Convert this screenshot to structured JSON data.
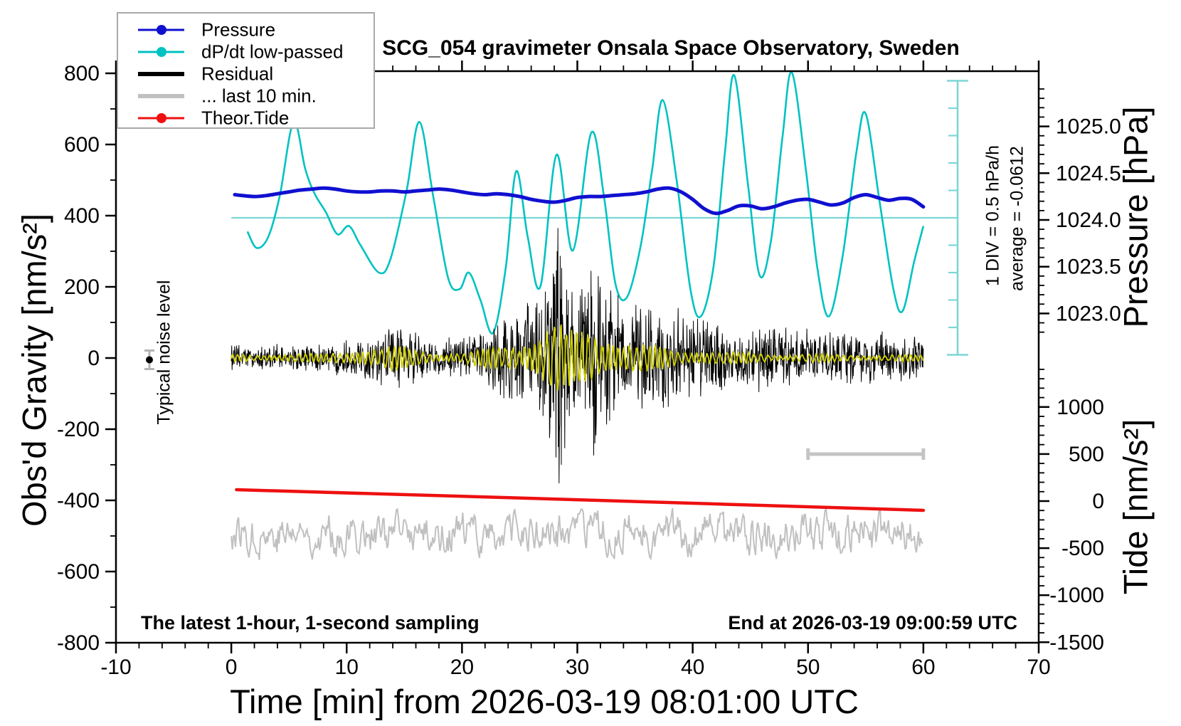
{
  "legend": {
    "items": [
      {
        "label": "Pressure",
        "color": "#1010d0",
        "dot": true,
        "thick": false
      },
      {
        "label": "dP/dt low-passed",
        "color": "#00c2c2",
        "dot": true,
        "thick": false
      },
      {
        "label": "Residual",
        "color": "#000000",
        "dot": false,
        "thick": true
      },
      {
        "label": "... last 10 min.",
        "color": "#c0c0c0",
        "dot": false,
        "thick": true
      },
      {
        "label": "Theor.Tide",
        "color": "#ee1010",
        "dot": true,
        "thick": false
      }
    ]
  },
  "chart_data": {
    "type": "line",
    "title": "SCG_054 gravimeter Onsala Space Observatory, Sweden",
    "x_axis": {
      "label": "Time [min] from 2026-03-19 08:01:00 UTC",
      "min": -10,
      "max": 70,
      "minor_step": 2,
      "major_ticks": [
        "-10",
        "0",
        "10",
        "20",
        "30",
        "40",
        "50",
        "60",
        "70"
      ]
    },
    "y_axis_gravity": {
      "label": "Obs'd Gravity [nm/s²]",
      "min": -800,
      "max": 800,
      "minor_step": 100,
      "major_ticks": [
        "800",
        "600",
        "400",
        "200",
        "0",
        "-200",
        "-400",
        "-600",
        "-800"
      ]
    },
    "y_axis_pressure": {
      "label": "Pressure [hPa]",
      "minor_step": 0.1,
      "major_ticks": [
        "1025.0",
        "1024.5",
        "1024.0",
        "1023.5",
        "1023.0"
      ]
    },
    "y_axis_tide": {
      "label": "Tide [nm/s²]",
      "minor_step": 100,
      "major_ticks": [
        "1000",
        "500",
        "0",
        "-500",
        "-1000",
        "-1500"
      ]
    },
    "annotations": {
      "bottom_left": "The latest 1-hour, 1-second sampling",
      "bottom_right": "End at 2026-03-19 09:00:59 UTC",
      "noise_label": "Typical noise level",
      "div_note": "1 DIV = 0.5 hPa/h",
      "avg_note": "average = -0.0612"
    },
    "dpdt_scale": {
      "div_value_hpa_per_h": 0.5,
      "divisions": 10,
      "average": -0.0612
    },
    "typical_noise_marker": {
      "x_min": -7.1,
      "gravity": -5,
      "error_nms2": 26
    },
    "last10_scale_bar": {
      "x_from_min": 50,
      "x_to_min": 60,
      "gravity": -270
    },
    "series": {
      "pressure_hpa": {
        "name": "Pressure",
        "color": "#1010d0",
        "points": [
          [
            0.3,
            1024.27
          ],
          [
            1,
            1024.26
          ],
          [
            2,
            1024.25
          ],
          [
            3,
            1024.26
          ],
          [
            4,
            1024.28
          ],
          [
            5,
            1024.3
          ],
          [
            6,
            1024.32
          ],
          [
            7,
            1024.33
          ],
          [
            8,
            1024.34
          ],
          [
            9,
            1024.33
          ],
          [
            10,
            1024.31
          ],
          [
            11,
            1024.3
          ],
          [
            12,
            1024.3
          ],
          [
            13,
            1024.31
          ],
          [
            14,
            1024.31
          ],
          [
            15,
            1024.3
          ],
          [
            16,
            1024.31
          ],
          [
            17,
            1024.32
          ],
          [
            18,
            1024.33
          ],
          [
            19,
            1024.32
          ],
          [
            20,
            1024.3
          ],
          [
            21,
            1024.28
          ],
          [
            22,
            1024.27
          ],
          [
            23,
            1024.28
          ],
          [
            24,
            1024.27
          ],
          [
            25,
            1024.25
          ],
          [
            26,
            1024.22
          ],
          [
            27,
            1024.2
          ],
          [
            28,
            1024.19
          ],
          [
            29,
            1024.21
          ],
          [
            30,
            1024.24
          ],
          [
            31,
            1024.25
          ],
          [
            32,
            1024.25
          ],
          [
            33,
            1024.26
          ],
          [
            34,
            1024.27
          ],
          [
            35,
            1024.28
          ],
          [
            36,
            1024.3
          ],
          [
            37,
            1024.33
          ],
          [
            38,
            1024.34
          ],
          [
            39,
            1024.3
          ],
          [
            40,
            1024.22
          ],
          [
            41,
            1024.12
          ],
          [
            42,
            1024.07
          ],
          [
            43,
            1024.1
          ],
          [
            44,
            1024.15
          ],
          [
            45,
            1024.15
          ],
          [
            46,
            1024.12
          ],
          [
            47,
            1024.14
          ],
          [
            48,
            1024.18
          ],
          [
            49,
            1024.21
          ],
          [
            50,
            1024.22
          ],
          [
            51,
            1024.19
          ],
          [
            52,
            1024.16
          ],
          [
            53,
            1024.18
          ],
          [
            54,
            1024.24
          ],
          [
            55,
            1024.27
          ],
          [
            56,
            1024.24
          ],
          [
            57,
            1024.21
          ],
          [
            58,
            1024.23
          ],
          [
            59,
            1024.22
          ],
          [
            60,
            1024.14
          ]
        ]
      },
      "dpdt_hpa_per_h": {
        "name": "dP/dt low-passed",
        "color": "#00c2c2",
        "zero_line_at_pressure_hpa": 1024.0,
        "points": [
          [
            1.4,
            -0.25
          ],
          [
            2.2,
            -0.55
          ],
          [
            3.2,
            -0.35
          ],
          [
            4.2,
            0.4
          ],
          [
            5.4,
            1.75
          ],
          [
            6.4,
            0.9
          ],
          [
            7.2,
            0.45
          ],
          [
            8.2,
            0.1
          ],
          [
            9.2,
            -0.3
          ],
          [
            10.2,
            -0.15
          ],
          [
            11.2,
            -0.5
          ],
          [
            12.8,
            -1.0
          ],
          [
            13.8,
            -0.75
          ],
          [
            15.2,
            0.5
          ],
          [
            16.3,
            1.75
          ],
          [
            17.5,
            0.4
          ],
          [
            18.8,
            -1.1
          ],
          [
            19.8,
            -1.3
          ],
          [
            20.6,
            -1.0
          ],
          [
            21.6,
            -1.5
          ],
          [
            22.7,
            -2.1
          ],
          [
            23.8,
            -0.9
          ],
          [
            24.7,
            0.85
          ],
          [
            25.7,
            -0.35
          ],
          [
            26.8,
            -1.25
          ],
          [
            28.2,
            1.15
          ],
          [
            29.6,
            -0.6
          ],
          [
            31.2,
            1.55
          ],
          [
            32.3,
            0.4
          ],
          [
            33.3,
            -1.2
          ],
          [
            34.3,
            -1.45
          ],
          [
            35.5,
            -0.5
          ],
          [
            36.5,
            0.9
          ],
          [
            37.4,
            2.15
          ],
          [
            38.6,
            0.7
          ],
          [
            39.8,
            -1.3
          ],
          [
            40.7,
            -1.8
          ],
          [
            41.8,
            -0.9
          ],
          [
            42.8,
            1.2
          ],
          [
            43.6,
            2.6
          ],
          [
            44.8,
            0.6
          ],
          [
            45.8,
            -1.05
          ],
          [
            46.8,
            -0.4
          ],
          [
            47.8,
            1.5
          ],
          [
            48.6,
            2.65
          ],
          [
            49.8,
            0.9
          ],
          [
            50.8,
            -0.9
          ],
          [
            51.8,
            -1.8
          ],
          [
            53.0,
            -0.7
          ],
          [
            54.2,
            1.2
          ],
          [
            55.0,
            1.9
          ],
          [
            56.2,
            0.3
          ],
          [
            57.4,
            -1.3
          ],
          [
            58.2,
            -1.7
          ],
          [
            59.2,
            -0.8
          ],
          [
            60,
            -0.15
          ]
        ]
      },
      "residual": {
        "name": "Residual",
        "color": "#000000",
        "seed": 1234,
        "envelope": [
          [
            0,
            32
          ],
          [
            8,
            34
          ],
          [
            10,
            45
          ],
          [
            12,
            55
          ],
          [
            13.5,
            75
          ],
          [
            15.5,
            78
          ],
          [
            17,
            48
          ],
          [
            19,
            50
          ],
          [
            21,
            55
          ],
          [
            22,
            70
          ],
          [
            23,
            90
          ],
          [
            24,
            110
          ],
          [
            25,
            130
          ],
          [
            26,
            150
          ],
          [
            27,
            170
          ],
          [
            27.8,
            230
          ],
          [
            28.3,
            365
          ],
          [
            28.8,
            230
          ],
          [
            29.5,
            180
          ],
          [
            30.5,
            190
          ],
          [
            31,
            260
          ],
          [
            31.8,
            265
          ],
          [
            32.5,
            200
          ],
          [
            33.5,
            160
          ],
          [
            34.5,
            150
          ],
          [
            36,
            130
          ],
          [
            37.5,
            130
          ],
          [
            39,
            115
          ],
          [
            40,
            105
          ],
          [
            42,
            92
          ],
          [
            44,
            85
          ],
          [
            46,
            95
          ],
          [
            48,
            75
          ],
          [
            50,
            68
          ],
          [
            52,
            72
          ],
          [
            54,
            62
          ],
          [
            56,
            68
          ],
          [
            58,
            62
          ],
          [
            60,
            58
          ]
        ],
        "spikes": [
          [
            28.25,
            300
          ],
          [
            28.3,
            365
          ],
          [
            28.36,
            -250
          ],
          [
            28.42,
            -352
          ],
          [
            28.5,
            287
          ],
          [
            28.6,
            -300
          ],
          [
            31.2,
            245
          ],
          [
            31.5,
            -240
          ],
          [
            31.8,
            230
          ]
        ]
      },
      "residual_band_overlay": {
        "name": "band-passed residual overlay",
        "color": "#cfcf00",
        "envelope": [
          [
            0,
            10
          ],
          [
            8,
            11
          ],
          [
            10,
            20
          ],
          [
            12,
            26
          ],
          [
            14,
            30
          ],
          [
            16,
            26
          ],
          [
            18,
            14
          ],
          [
            20,
            14
          ],
          [
            22,
            25
          ],
          [
            24,
            42
          ],
          [
            25,
            50
          ],
          [
            26,
            58
          ],
          [
            27,
            70
          ],
          [
            28,
            90
          ],
          [
            28.5,
            95
          ],
          [
            29,
            75
          ],
          [
            30,
            65
          ],
          [
            31,
            80
          ],
          [
            32,
            72
          ],
          [
            33,
            55
          ],
          [
            34,
            45
          ],
          [
            36,
            34
          ],
          [
            38,
            27
          ],
          [
            40,
            22
          ],
          [
            42,
            18
          ],
          [
            44,
            15
          ],
          [
            46,
            14
          ],
          [
            48,
            12
          ],
          [
            50,
            11
          ],
          [
            52,
            10
          ],
          [
            54,
            10
          ],
          [
            56,
            9
          ],
          [
            58,
            9
          ],
          [
            60,
            8
          ]
        ]
      },
      "residual_last10": {
        "name": "... last 10 min.",
        "color": "#c0c0c0",
        "center_gravity": -494,
        "amp": 55,
        "seed": 77
      },
      "theor_tide": {
        "name": "Theor.Tide",
        "color": "#ee1010",
        "points_tide": [
          [
            0.45,
            121
          ],
          [
            30,
            14
          ],
          [
            60,
            -98
          ]
        ]
      }
    }
  }
}
